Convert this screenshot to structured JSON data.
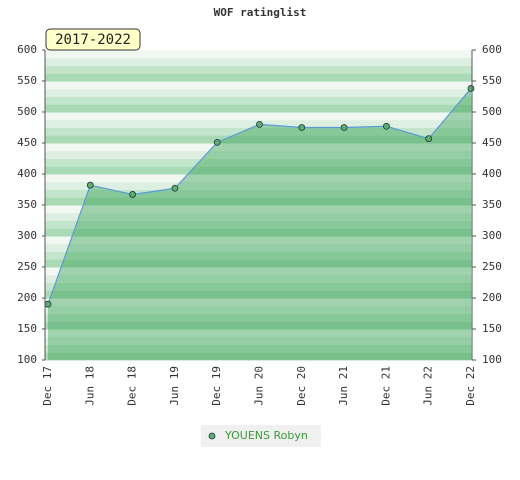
{
  "chart_data": {
    "type": "line",
    "title": "WOF ratinglist",
    "badge": "2017-2022",
    "categories": [
      "Dec 17",
      "Jun 18",
      "Dec 18",
      "Jun 19",
      "Dec 19",
      "Jun 20",
      "Dec 20",
      "Jun 21",
      "Dec 21",
      "Jun 22",
      "Dec 22"
    ],
    "series": [
      {
        "name": "YOUENS Robyn",
        "color": "#5b9bd5",
        "marker_color": "#5aae6e",
        "values": [
          190,
          382,
          367,
          377,
          451,
          480,
          475,
          475,
          477,
          457,
          538
        ]
      }
    ],
    "ylim": [
      100,
      600
    ],
    "yticks": [
      100,
      150,
      200,
      250,
      300,
      350,
      400,
      450,
      500,
      550,
      600
    ],
    "y2lim": [
      100,
      600
    ],
    "y2ticks": [
      100,
      150,
      200,
      250,
      300,
      350,
      400,
      450,
      500,
      550,
      600
    ]
  }
}
